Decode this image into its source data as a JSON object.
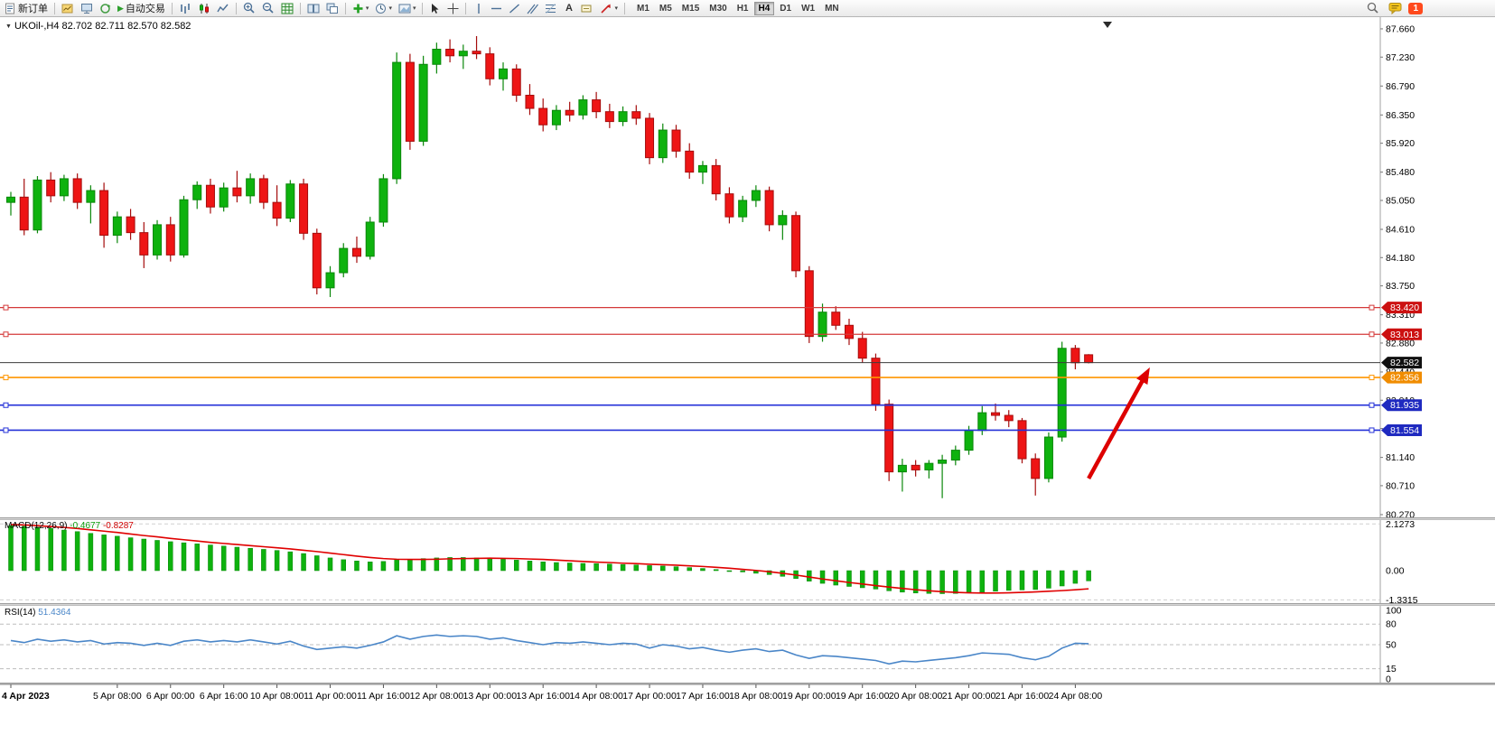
{
  "toolbar": {
    "new_order_label": "新订单",
    "autotrade_label": "自动交易",
    "timeframes": [
      "M1",
      "M5",
      "M15",
      "M30",
      "H1",
      "H4",
      "D1",
      "W1",
      "MN"
    ],
    "active_timeframe": "H4",
    "notification_count": "1"
  },
  "chart": {
    "title": "UKOil-,H4 82.702 82.711 82.570 82.582"
  },
  "colors": {
    "bull": "#0eb20e",
    "bull_stroke": "#0a870a",
    "bear": "#ee1515",
    "bear_stroke": "#a50d0d",
    "macd_hist": "#0eb20e",
    "macd_signal": "#e00000",
    "rsi_line": "#4a86c8",
    "price_line": "#3c3c3c"
  },
  "chart_data": {
    "type": "candlestick",
    "symbol": "U­KOil-",
    "timeframe": "H4",
    "current_price": {
      "value": 82.582,
      "label": "82.582",
      "badge": "#101010"
    },
    "price_axis_labels": [
      "87.660",
      "87.230",
      "86.790",
      "86.350",
      "85.920",
      "85.480",
      "85.050",
      "84.610",
      "84.180",
      "83.750",
      "83.310",
      "82.880",
      "82.440",
      "82.010",
      "81.580",
      "81.140",
      "80.710",
      "80.270"
    ],
    "horizontal_lines": [
      {
        "price": 83.42,
        "label": "83.420",
        "color": "#d43a3a",
        "badge": "#cc1111",
        "width": 1.2
      },
      {
        "price": 83.013,
        "label": "83.013",
        "color": "#d43a3a",
        "badge": "#cc1111",
        "width": 1.2
      },
      {
        "price": 82.356,
        "label": "82.356",
        "color": "#ff9500",
        "badge": "#f08c00",
        "width": 1.6
      },
      {
        "price": 81.935,
        "label": "81.935",
        "color": "#2431d8",
        "badge": "#1f2ac0",
        "width": 1.6
      },
      {
        "price": 81.554,
        "label": "81.554",
        "color": "#2431d8",
        "badge": "#1f2ac0",
        "width": 1.6
      }
    ],
    "candles": [
      [
        85.02,
        85.18,
        84.82,
        85.1
      ],
      [
        85.1,
        85.38,
        84.52,
        84.6
      ],
      [
        84.6,
        85.42,
        84.55,
        85.36
      ],
      [
        85.36,
        85.48,
        85.02,
        85.12
      ],
      [
        85.12,
        85.44,
        85.04,
        85.38
      ],
      [
        85.38,
        85.46,
        84.92,
        85.02
      ],
      [
        85.02,
        85.28,
        84.7,
        85.2
      ],
      [
        85.2,
        85.32,
        84.33,
        84.52
      ],
      [
        84.52,
        84.88,
        84.4,
        84.8
      ],
      [
        84.8,
        84.92,
        84.45,
        84.56
      ],
      [
        84.56,
        84.72,
        84.02,
        84.22
      ],
      [
        84.22,
        84.75,
        84.15,
        84.68
      ],
      [
        84.68,
        84.8,
        84.12,
        84.22
      ],
      [
        84.22,
        85.12,
        84.18,
        85.06
      ],
      [
        85.06,
        85.34,
        84.92,
        85.28
      ],
      [
        85.28,
        85.38,
        84.85,
        84.95
      ],
      [
        84.95,
        85.32,
        84.88,
        85.24
      ],
      [
        85.24,
        85.5,
        85.02,
        85.12
      ],
      [
        85.12,
        85.46,
        85.0,
        85.38
      ],
      [
        85.38,
        85.44,
        84.92,
        85.02
      ],
      [
        85.02,
        85.28,
        84.66,
        84.78
      ],
      [
        84.78,
        85.36,
        84.72,
        85.3
      ],
      [
        85.3,
        85.38,
        84.45,
        84.55
      ],
      [
        84.55,
        84.62,
        83.62,
        83.72
      ],
      [
        83.72,
        84.05,
        83.58,
        83.95
      ],
      [
        83.95,
        84.4,
        83.88,
        84.32
      ],
      [
        84.32,
        84.5,
        84.1,
        84.2
      ],
      [
        84.2,
        84.8,
        84.15,
        84.72
      ],
      [
        84.72,
        85.45,
        84.65,
        85.38
      ],
      [
        85.38,
        87.3,
        85.3,
        87.15
      ],
      [
        87.15,
        87.28,
        85.82,
        85.95
      ],
      [
        85.95,
        87.25,
        85.88,
        87.12
      ],
      [
        87.12,
        87.45,
        86.98,
        87.35
      ],
      [
        87.35,
        87.5,
        87.15,
        87.25
      ],
      [
        87.25,
        87.42,
        87.05,
        87.32
      ],
      [
        87.32,
        87.55,
        87.2,
        87.28
      ],
      [
        87.28,
        87.38,
        86.8,
        86.9
      ],
      [
        86.9,
        87.15,
        86.72,
        87.05
      ],
      [
        87.05,
        87.12,
        86.55,
        86.65
      ],
      [
        86.65,
        86.82,
        86.35,
        86.45
      ],
      [
        86.45,
        86.6,
        86.1,
        86.2
      ],
      [
        86.2,
        86.5,
        86.12,
        86.42
      ],
      [
        86.42,
        86.55,
        86.25,
        86.35
      ],
      [
        86.35,
        86.65,
        86.28,
        86.58
      ],
      [
        86.58,
        86.7,
        86.3,
        86.4
      ],
      [
        86.4,
        86.52,
        86.15,
        86.25
      ],
      [
        86.25,
        86.48,
        86.18,
        86.4
      ],
      [
        86.4,
        86.5,
        86.2,
        86.3
      ],
      [
        86.3,
        86.38,
        85.6,
        85.7
      ],
      [
        85.7,
        86.22,
        85.62,
        86.12
      ],
      [
        86.12,
        86.2,
        85.7,
        85.8
      ],
      [
        85.8,
        85.92,
        85.38,
        85.48
      ],
      [
        85.48,
        85.65,
        85.3,
        85.58
      ],
      [
        85.58,
        85.68,
        85.05,
        85.15
      ],
      [
        85.15,
        85.25,
        84.7,
        84.8
      ],
      [
        84.8,
        85.12,
        84.72,
        85.05
      ],
      [
        85.05,
        85.28,
        84.95,
        85.2
      ],
      [
        85.2,
        85.26,
        84.58,
        84.68
      ],
      [
        84.68,
        84.9,
        84.45,
        84.82
      ],
      [
        84.82,
        84.88,
        83.88,
        83.98
      ],
      [
        83.98,
        84.05,
        82.88,
        82.98
      ],
      [
        82.98,
        83.48,
        82.9,
        83.35
      ],
      [
        83.35,
        83.44,
        83.08,
        83.15
      ],
      [
        83.15,
        83.25,
        82.85,
        82.95
      ],
      [
        82.95,
        83.05,
        82.58,
        82.65
      ],
      [
        82.65,
        82.72,
        81.85,
        81.95
      ],
      [
        81.95,
        82.02,
        80.78,
        80.92
      ],
      [
        80.92,
        81.12,
        80.62,
        81.02
      ],
      [
        81.02,
        81.1,
        80.85,
        80.95
      ],
      [
        80.95,
        81.1,
        80.82,
        81.05
      ],
      [
        81.05,
        81.18,
        80.52,
        81.1
      ],
      [
        81.1,
        81.32,
        81.02,
        81.25
      ],
      [
        81.25,
        81.62,
        81.18,
        81.55
      ],
      [
        81.55,
        81.92,
        81.48,
        81.82
      ],
      [
        81.82,
        81.96,
        81.7,
        81.78
      ],
      [
        81.78,
        81.86,
        81.6,
        81.7
      ],
      [
        81.7,
        81.74,
        81.05,
        81.12
      ],
      [
        81.12,
        81.2,
        80.56,
        80.82
      ],
      [
        80.82,
        81.52,
        80.76,
        81.45
      ],
      [
        81.45,
        82.9,
        81.38,
        82.8
      ],
      [
        82.8,
        82.85,
        82.48,
        82.58
      ],
      [
        82.702,
        82.711,
        82.57,
        82.582
      ]
    ],
    "time_labels": [
      [
        0,
        "4 Apr 2023"
      ],
      [
        8,
        "5 Apr 08:00"
      ],
      [
        12,
        "6 Apr 00:00"
      ],
      [
        16,
        "6 Apr 16:00"
      ],
      [
        20,
        "10 Apr 08:00"
      ],
      [
        24,
        "11 Apr 00:00"
      ],
      [
        28,
        "11 Apr 16:00"
      ],
      [
        32,
        "12 Apr 08:00"
      ],
      [
        36,
        "13 Apr 00:00"
      ],
      [
        40,
        "13 Apr 16:00"
      ],
      [
        44,
        "14 Apr 08:00"
      ],
      [
        48,
        "17 Apr 00:00"
      ],
      [
        52,
        "17 Apr 16:00"
      ],
      [
        56,
        "18 Apr 08:00"
      ],
      [
        60,
        "19 Apr 00:00"
      ],
      [
        64,
        "19 Apr 16:00"
      ],
      [
        68,
        "20 Apr 08:00"
      ],
      [
        72,
        "21 Apr 00:00"
      ],
      [
        76,
        "21 Apr 16:00"
      ],
      [
        80,
        "24 Apr 08:00"
      ]
    ],
    "macd": {
      "label": "MACD(12,26,9)",
      "value_main": "-0.4677",
      "value_signal": "-0.8287",
      "axis_labels": [
        "2.1273",
        "0.00",
        "-1.3315"
      ],
      "histogram": [
        2.05,
        2.02,
        1.98,
        1.92,
        1.85,
        1.78,
        1.7,
        1.63,
        1.57,
        1.5,
        1.44,
        1.38,
        1.32,
        1.27,
        1.22,
        1.17,
        1.12,
        1.07,
        1.02,
        0.97,
        0.92,
        0.86,
        0.78,
        0.68,
        0.58,
        0.5,
        0.44,
        0.4,
        0.42,
        0.5,
        0.52,
        0.55,
        0.58,
        0.6,
        0.6,
        0.58,
        0.55,
        0.52,
        0.48,
        0.44,
        0.4,
        0.37,
        0.35,
        0.33,
        0.32,
        0.3,
        0.28,
        0.26,
        0.23,
        0.21,
        0.18,
        0.14,
        0.1,
        0.05,
        0.0,
        -0.06,
        -0.12,
        -0.18,
        -0.26,
        -0.36,
        -0.48,
        -0.58,
        -0.66,
        -0.72,
        -0.78,
        -0.84,
        -0.92,
        -0.98,
        -1.02,
        -1.04,
        -1.05,
        -1.04,
        -1.02,
        -0.98,
        -0.94,
        -0.9,
        -0.88,
        -0.86,
        -0.8,
        -0.7,
        -0.58,
        -0.4677
      ],
      "signal": [
        2.1,
        2.08,
        2.05,
        2.01,
        1.97,
        1.92,
        1.86,
        1.8,
        1.74,
        1.67,
        1.6,
        1.54,
        1.47,
        1.41,
        1.35,
        1.29,
        1.24,
        1.19,
        1.14,
        1.09,
        1.04,
        0.99,
        0.93,
        0.87,
        0.8,
        0.73,
        0.66,
        0.6,
        0.55,
        0.52,
        0.51,
        0.51,
        0.52,
        0.54,
        0.55,
        0.56,
        0.57,
        0.56,
        0.55,
        0.53,
        0.51,
        0.48,
        0.45,
        0.42,
        0.39,
        0.37,
        0.34,
        0.32,
        0.29,
        0.27,
        0.25,
        0.22,
        0.19,
        0.15,
        0.11,
        0.06,
        0.01,
        -0.05,
        -0.12,
        -0.2,
        -0.29,
        -0.38,
        -0.46,
        -0.54,
        -0.61,
        -0.68,
        -0.75,
        -0.81,
        -0.87,
        -0.92,
        -0.96,
        -0.99,
        -1.01,
        -1.02,
        -1.02,
        -1.01,
        -0.99,
        -0.97,
        -0.94,
        -0.91,
        -0.87,
        -0.8287
      ]
    },
    "rsi": {
      "label": "RSI(14)",
      "value": "51.4364",
      "axis_labels": [
        "100",
        "80",
        "50",
        "15",
        "0"
      ],
      "levels": [
        80,
        50,
        15
      ],
      "values": [
        56,
        53,
        58,
        55,
        57,
        54,
        56,
        51,
        53,
        52,
        49,
        52,
        49,
        55,
        57,
        54,
        56,
        54,
        57,
        54,
        51,
        55,
        48,
        43,
        45,
        47,
        45,
        49,
        54,
        63,
        58,
        62,
        64,
        62,
        63,
        62,
        58,
        60,
        56,
        53,
        50,
        53,
        52,
        54,
        52,
        50,
        52,
        51,
        45,
        50,
        48,
        44,
        46,
        42,
        39,
        42,
        44,
        40,
        42,
        35,
        30,
        34,
        33,
        31,
        29,
        27,
        22,
        26,
        25,
        27,
        29,
        31,
        34,
        38,
        37,
        36,
        31,
        28,
        33,
        45,
        52,
        51.4364
      ]
    },
    "arrow_annotation": {
      "from_index": 81,
      "from_price": 80.82,
      "to_index": 85.6,
      "to_price": 82.51,
      "color": "#dd0000"
    }
  }
}
